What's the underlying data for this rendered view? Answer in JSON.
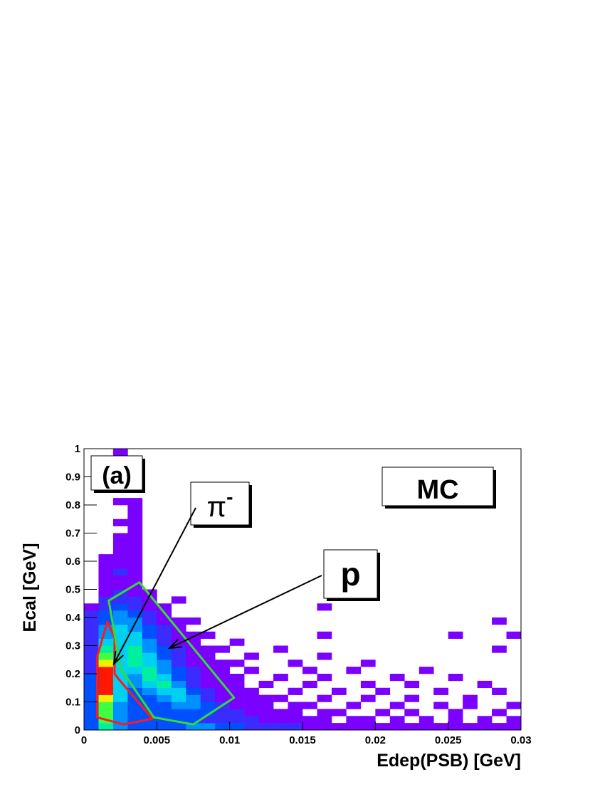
{
  "chart_data": {
    "type": "heatmap",
    "x_label": "Edep(PSB) [GeV]",
    "y_label": "Ecal [GeV]",
    "xlim": [
      0,
      0.03
    ],
    "ylim": [
      0,
      1
    ],
    "xticks": [
      0,
      0.005,
      0.01,
      0.015,
      0.02,
      0.025,
      0.03
    ],
    "yticks": [
      0,
      0.1,
      0.2,
      0.3,
      0.4,
      0.5,
      0.6,
      0.7,
      0.8,
      0.9,
      1
    ],
    "palette": [
      "#7a00ff",
      "#3a2bff",
      "#0050ff",
      "#0090ff",
      "#00d0f0",
      "#00f0a0",
      "#40ff40",
      "#f0f000",
      "#ff1800"
    ],
    "xbins": [
      0,
      0.001,
      0.002,
      0.003,
      0.004,
      0.005,
      0.006,
      0.007,
      0.008,
      0.009,
      0.01,
      0.011,
      0.012,
      0.013,
      0.014,
      0.015,
      0.016,
      0.017,
      0.018,
      0.019,
      0.02,
      0.021,
      0.022,
      0.023,
      0.024,
      0.025,
      0.026,
      0.027,
      0.028,
      0.029,
      0.03
    ],
    "ybins": [
      0,
      0.025,
      0.05,
      0.075,
      0.1,
      0.125,
      0.15,
      0.175,
      0.2,
      0.225,
      0.25,
      0.275,
      0.3,
      0.325,
      0.35,
      0.375,
      0.4,
      0.425,
      0.45,
      0.475,
      0.5,
      0.525,
      0.55,
      0.575,
      0.6,
      0.625,
      0.65,
      0.675,
      0.7,
      0.725,
      0.75,
      0.775,
      0.8,
      0.825,
      0.85,
      0.875,
      0.9,
      0.925,
      0.95,
      0.975,
      1
    ],
    "z": [
      [
        3,
        6,
        4,
        3,
        3,
        3,
        3,
        4,
        4,
        3,
        3,
        2,
        2,
        2,
        2,
        1,
        1,
        1,
        1,
        1,
        1,
        1,
        1,
        1,
        1,
        1,
        1,
        1,
        1,
        1
      ],
      [
        3,
        7,
        4,
        3,
        3,
        3,
        3,
        3,
        2,
        2,
        2,
        2,
        1,
        1,
        1,
        1,
        1,
        0,
        1,
        1,
        0,
        1,
        0,
        1,
        0,
        1,
        0,
        1,
        0,
        1
      ],
      [
        3,
        7,
        4,
        3,
        3,
        3,
        3,
        3,
        3,
        2,
        2,
        1,
        1,
        1,
        1,
        0,
        1,
        1,
        0,
        0,
        1,
        0,
        1,
        0,
        0,
        1,
        0,
        0,
        1,
        0
      ],
      [
        3,
        7,
        4,
        3,
        3,
        3,
        4,
        4,
        3,
        2,
        1,
        1,
        1,
        0,
        1,
        1,
        0,
        0,
        1,
        0,
        0,
        1,
        0,
        0,
        1,
        0,
        1,
        0,
        0,
        1
      ],
      [
        3,
        8,
        5,
        3,
        3,
        4,
        5,
        4,
        2,
        1,
        1,
        1,
        1,
        1,
        0,
        0,
        1,
        0,
        0,
        1,
        0,
        0,
        1,
        0,
        0,
        0,
        1,
        0,
        0,
        0
      ],
      [
        3,
        9,
        5,
        3,
        4,
        5,
        5,
        3,
        2,
        1,
        1,
        1,
        0,
        0,
        1,
        0,
        0,
        1,
        0,
        0,
        1,
        0,
        0,
        0,
        1,
        0,
        0,
        0,
        1,
        0
      ],
      [
        3,
        9,
        5,
        4,
        5,
        6,
        4,
        2,
        1,
        1,
        1,
        0,
        1,
        0,
        0,
        1,
        0,
        0,
        0,
        1,
        0,
        0,
        1,
        0,
        0,
        0,
        0,
        1,
        0,
        0
      ],
      [
        3,
        9,
        5,
        4,
        6,
        5,
        3,
        2,
        1,
        1,
        1,
        0,
        0,
        1,
        0,
        0,
        1,
        0,
        0,
        0,
        0,
        1,
        0,
        0,
        0,
        1,
        0,
        0,
        0,
        0
      ],
      [
        2,
        9,
        5,
        5,
        6,
        4,
        3,
        2,
        1,
        1,
        0,
        1,
        0,
        0,
        0,
        1,
        0,
        0,
        1,
        0,
        0,
        0,
        0,
        1,
        0,
        0,
        0,
        0,
        0,
        0
      ],
      [
        2,
        8,
        5,
        6,
        5,
        4,
        2,
        1,
        1,
        1,
        1,
        0,
        0,
        0,
        1,
        0,
        0,
        0,
        0,
        1,
        0,
        0,
        0,
        0,
        0,
        0,
        0,
        0,
        0,
        0
      ],
      [
        2,
        7,
        5,
        6,
        5,
        3,
        2,
        1,
        1,
        0,
        0,
        1,
        0,
        0,
        0,
        0,
        1,
        0,
        0,
        0,
        0,
        0,
        0,
        0,
        0,
        0,
        0,
        0,
        0,
        0
      ],
      [
        2,
        6,
        5,
        6,
        4,
        3,
        2,
        1,
        1,
        1,
        0,
        0,
        0,
        1,
        0,
        0,
        0,
        0,
        0,
        0,
        0,
        0,
        0,
        0,
        0,
        0,
        0,
        0,
        1,
        0
      ],
      [
        2,
        5,
        5,
        5,
        4,
        2,
        1,
        1,
        0,
        0,
        1,
        0,
        0,
        0,
        0,
        0,
        0,
        0,
        0,
        0,
        0,
        0,
        0,
        0,
        0,
        0,
        0,
        0,
        0,
        0
      ],
      [
        2,
        4,
        5,
        5,
        3,
        2,
        1,
        1,
        1,
        0,
        0,
        0,
        0,
        0,
        0,
        0,
        1,
        0,
        0,
        0,
        0,
        0,
        0,
        0,
        0,
        1,
        0,
        0,
        0,
        1
      ],
      [
        2,
        4,
        5,
        4,
        3,
        2,
        1,
        0,
        0,
        0,
        0,
        0,
        0,
        0,
        0,
        0,
        0,
        0,
        0,
        0,
        0,
        0,
        0,
        0,
        0,
        0,
        0,
        0,
        0,
        0
      ],
      [
        2,
        3,
        4,
        4,
        2,
        1,
        1,
        1,
        0,
        0,
        0,
        0,
        0,
        0,
        0,
        0,
        0,
        0,
        0,
        0,
        0,
        0,
        0,
        0,
        0,
        0,
        0,
        0,
        1,
        0
      ],
      [
        2,
        3,
        4,
        3,
        2,
        1,
        0,
        0,
        0,
        0,
        0,
        0,
        0,
        0,
        0,
        0,
        0,
        0,
        0,
        0,
        0,
        0,
        0,
        0,
        0,
        0,
        0,
        0,
        0,
        0
      ],
      [
        1,
        2,
        3,
        2,
        1,
        1,
        0,
        0,
        0,
        0,
        0,
        0,
        0,
        0,
        0,
        0,
        1,
        0,
        0,
        0,
        0,
        0,
        0,
        0,
        0,
        0,
        0,
        0,
        0,
        0
      ],
      [
        0,
        2,
        2,
        2,
        1,
        0,
        1,
        0,
        0,
        0,
        0,
        0,
        0,
        0,
        0,
        0,
        0,
        0,
        0,
        0,
        0,
        0,
        0,
        0,
        0,
        0,
        0,
        0,
        0,
        0
      ],
      [
        0,
        1,
        2,
        1,
        1,
        0,
        0,
        0,
        0,
        0,
        0,
        0,
        0,
        0,
        0,
        0,
        0,
        0,
        0,
        0,
        0,
        0,
        0,
        0,
        0,
        0,
        0,
        0,
        0,
        0
      ],
      [
        0,
        1,
        1,
        1,
        0,
        0,
        0,
        0,
        0,
        0,
        0,
        0,
        0,
        0,
        0,
        0,
        0,
        0,
        0,
        0,
        0,
        0,
        0,
        0,
        0,
        0,
        0,
        0,
        0,
        0
      ],
      [
        0,
        1,
        1,
        1,
        0,
        0,
        0,
        0,
        0,
        0,
        0,
        0,
        0,
        0,
        0,
        0,
        0,
        0,
        0,
        0,
        0,
        0,
        0,
        0,
        0,
        0,
        0,
        0,
        0,
        0
      ],
      [
        0,
        1,
        2,
        1,
        0,
        0,
        0,
        0,
        0,
        0,
        0,
        0,
        0,
        0,
        0,
        0,
        0,
        0,
        0,
        0,
        0,
        0,
        0,
        0,
        0,
        0,
        0,
        0,
        0,
        0
      ],
      [
        0,
        1,
        1,
        1,
        0,
        0,
        0,
        0,
        0,
        0,
        0,
        0,
        0,
        0,
        0,
        0,
        0,
        0,
        0,
        0,
        0,
        0,
        0,
        0,
        0,
        0,
        0,
        0,
        0,
        0
      ],
      [
        0,
        1,
        1,
        1,
        0,
        0,
        0,
        0,
        0,
        0,
        0,
        0,
        0,
        0,
        0,
        0,
        0,
        0,
        0,
        0,
        0,
        0,
        0,
        0,
        0,
        0,
        0,
        0,
        0,
        0
      ],
      [
        0,
        0,
        1,
        1,
        0,
        0,
        0,
        0,
        0,
        0,
        0,
        0,
        0,
        0,
        0,
        0,
        0,
        0,
        0,
        0,
        0,
        0,
        0,
        0,
        0,
        0,
        0,
        0,
        0,
        0
      ],
      [
        0,
        0,
        1,
        1,
        0,
        0,
        0,
        0,
        0,
        0,
        0,
        0,
        0,
        0,
        0,
        0,
        0,
        0,
        0,
        0,
        0,
        0,
        0,
        0,
        0,
        0,
        0,
        0,
        0,
        0
      ],
      [
        0,
        0,
        1,
        1,
        0,
        0,
        0,
        0,
        0,
        0,
        0,
        0,
        0,
        0,
        0,
        0,
        0,
        0,
        0,
        0,
        0,
        0,
        0,
        0,
        0,
        0,
        0,
        0,
        0,
        0
      ],
      [
        0,
        0,
        0,
        1,
        0,
        0,
        0,
        0,
        0,
        0,
        0,
        0,
        0,
        0,
        0,
        0,
        0,
        0,
        0,
        0,
        0,
        0,
        0,
        0,
        0,
        0,
        0,
        0,
        0,
        0
      ],
      [
        0,
        0,
        1,
        1,
        0,
        0,
        0,
        0,
        0,
        0,
        0,
        0,
        0,
        0,
        0,
        0,
        0,
        0,
        0,
        0,
        0,
        0,
        0,
        0,
        0,
        0,
        0,
        0,
        0,
        0
      ],
      [
        0,
        0,
        0,
        1,
        0,
        0,
        0,
        0,
        0,
        0,
        0,
        0,
        0,
        0,
        0,
        0,
        0,
        0,
        0,
        0,
        0,
        0,
        0,
        0,
        0,
        0,
        0,
        0,
        0,
        0
      ],
      [
        0,
        0,
        0,
        1,
        0,
        0,
        0,
        0,
        0,
        0,
        0,
        0,
        0,
        0,
        0,
        0,
        0,
        0,
        0,
        0,
        0,
        0,
        0,
        0,
        0,
        0,
        0,
        0,
        0,
        0
      ],
      [
        0,
        0,
        1,
        1,
        0,
        0,
        0,
        0,
        0,
        0,
        0,
        0,
        0,
        0,
        0,
        0,
        0,
        0,
        0,
        0,
        0,
        0,
        0,
        0,
        0,
        0,
        0,
        0,
        0,
        0
      ],
      [
        0,
        0,
        0,
        0,
        0,
        0,
        0,
        0,
        0,
        0,
        0,
        0,
        0,
        0,
        0,
        0,
        0,
        0,
        0,
        0,
        0,
        0,
        0,
        0,
        0,
        0,
        0,
        0,
        0,
        0
      ],
      [
        0,
        0,
        0,
        0,
        0,
        0,
        0,
        0,
        0,
        0,
        0,
        0,
        0,
        0,
        0,
        0,
        0,
        0,
        0,
        0,
        0,
        0,
        0,
        0,
        0,
        0,
        0,
        0,
        0,
        0
      ],
      [
        0,
        0,
        0,
        0,
        0,
        0,
        0,
        0,
        0,
        0,
        0,
        0,
        0,
        0,
        0,
        0,
        0,
        0,
        0,
        0,
        0,
        0,
        0,
        0,
        0,
        0,
        0,
        0,
        0,
        0
      ],
      [
        0,
        0,
        0,
        0,
        0,
        0,
        0,
        0,
        0,
        0,
        0,
        0,
        0,
        0,
        0,
        0,
        0,
        0,
        0,
        0,
        0,
        0,
        0,
        0,
        0,
        0,
        0,
        0,
        0,
        0
      ],
      [
        0,
        0,
        0,
        0,
        0,
        0,
        0,
        0,
        0,
        0,
        0,
        0,
        0,
        0,
        0,
        0,
        0,
        0,
        0,
        0,
        0,
        0,
        0,
        0,
        0,
        0,
        0,
        0,
        0,
        0
      ],
      [
        0,
        0,
        0,
        0,
        0,
        0,
        0,
        0,
        0,
        0,
        0,
        0,
        0,
        0,
        0,
        0,
        0,
        0,
        0,
        0,
        0,
        0,
        0,
        0,
        0,
        0,
        0,
        0,
        0,
        0
      ],
      [
        0,
        0,
        1,
        0,
        0,
        0,
        0,
        0,
        0,
        0,
        0,
        0,
        0,
        0,
        0,
        0,
        0,
        0,
        0,
        0,
        0,
        0,
        0,
        0,
        0,
        0,
        0,
        0,
        0,
        0
      ]
    ],
    "cuts": [
      {
        "color": "#ff1a1a",
        "x": [
          0.0009,
          0.0016,
          0.0021,
          0.0021,
          0.0024,
          0.0047,
          0.0027,
          0.0009
        ],
        "y": [
          0.26,
          0.385,
          0.33,
          0.2,
          0.18,
          0.04,
          0.02,
          0.045
        ]
      },
      {
        "color": "#33dd33",
        "x": [
          0.0017,
          0.0038,
          0.0103,
          0.0075,
          0.0048,
          0.0025
        ],
        "y": [
          0.46,
          0.525,
          0.115,
          0.02,
          0.045,
          0.22
        ]
      }
    ],
    "annotations": [
      {
        "text": "(a)"
      },
      {
        "text": "MC"
      },
      {
        "text": "π",
        "sup": "-"
      },
      {
        "text": "p"
      }
    ]
  }
}
